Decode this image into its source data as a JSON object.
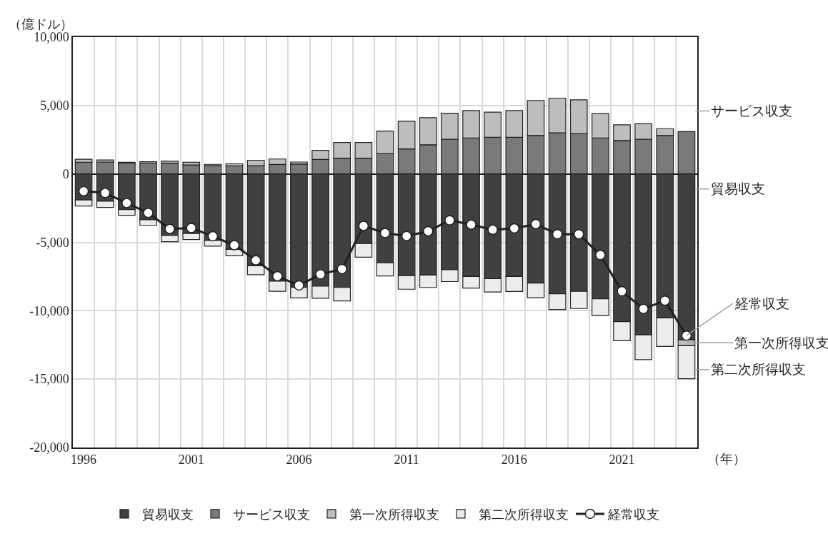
{
  "chart_data": {
    "type": "bar",
    "stacked": true,
    "ylabel": "（億ドル）",
    "xlabel": "（年）",
    "x": [
      1996,
      1997,
      1998,
      1999,
      2000,
      2001,
      2002,
      2003,
      2004,
      2005,
      2006,
      2007,
      2008,
      2009,
      2010,
      2011,
      2012,
      2013,
      2014,
      2015,
      2016,
      2017,
      2018,
      2019,
      2020,
      2021,
      2022,
      2023,
      2024
    ],
    "xlim": [
      1995.5,
      2024.5
    ],
    "xticks": [
      1996,
      2001,
      2006,
      2011,
      2016,
      2021
    ],
    "ylim": [
      -20000,
      10000
    ],
    "yticks": [
      {
        "value": -20000,
        "label": "-20,000"
      },
      {
        "value": -15000,
        "label": "-15,000"
      },
      {
        "value": -10000,
        "label": "-10,000"
      },
      {
        "value": -5000,
        "label": "-5,000"
      },
      0,
      {
        "value": 5000,
        "label": "5,000"
      },
      {
        "value": 10000,
        "label": "10,000"
      }
    ],
    "grid": true,
    "legend": "bottom",
    "marker": "circle",
    "line_style": "solid",
    "series": [
      {
        "name": "貿易収支",
        "color": "#404040",
        "values": [
          -1910,
          -2000,
          -2610,
          -3350,
          -4500,
          -4350,
          -4870,
          -5520,
          -6720,
          -7840,
          -8300,
          -8200,
          -8300,
          -5090,
          -6500,
          -7430,
          -7390,
          -7000,
          -7500,
          -7650,
          -7500,
          -7980,
          -8760,
          -8580,
          -9130,
          -10800,
          -11760,
          -10520,
          -12130
        ]
      },
      {
        "name": "サービス収支",
        "color": "#7a7a7a",
        "values": [
          850,
          870,
          800,
          790,
          780,
          650,
          600,
          590,
          600,
          690,
          720,
          1060,
          1150,
          1150,
          1480,
          1830,
          2130,
          2540,
          2630,
          2680,
          2680,
          2810,
          3000,
          2940,
          2630,
          2440,
          2540,
          2810,
          3090
        ]
      },
      {
        "name": "第一次所得収支",
        "color": "#bdbdbd",
        "values": [
          220,
          150,
          50,
          100,
          150,
          200,
          100,
          150,
          400,
          400,
          150,
          660,
          1150,
          1150,
          1650,
          2020,
          1980,
          1900,
          2000,
          1840,
          1950,
          2560,
          2540,
          2480,
          1780,
          1150,
          1130,
          500,
          -430
        ]
      },
      {
        "name": "第二次所得収支",
        "color": "#ececec",
        "values": [
          -440,
          -450,
          -410,
          -410,
          -450,
          -450,
          -410,
          -460,
          -650,
          -740,
          -760,
          -890,
          -980,
          -1000,
          -960,
          -1000,
          -910,
          -870,
          -850,
          -980,
          -1090,
          -1070,
          -1150,
          -1260,
          -1220,
          -1390,
          -1820,
          -2090,
          -2410
        ]
      },
      {
        "name": "経常収支",
        "type": "line",
        "color": "#231f20",
        "values": [
          -1260,
          -1390,
          -2130,
          -2850,
          -4020,
          -3950,
          -4560,
          -5210,
          -6320,
          -7480,
          -8150,
          -7340,
          -6950,
          -3800,
          -4320,
          -4540,
          -4190,
          -3390,
          -3710,
          -4080,
          -3980,
          -3670,
          -4410,
          -4410,
          -5930,
          -8580,
          -9870,
          -9260,
          -11820
        ]
      }
    ],
    "annotations": [
      "サービス収支",
      "貿易収支",
      {
        "text": "経常収支",
        "x": 2024,
        "y": -11820
      },
      {
        "text": "第一次所得収支",
        "x": 2024,
        "y": -12340
      },
      "第二次所得収支"
    ]
  }
}
